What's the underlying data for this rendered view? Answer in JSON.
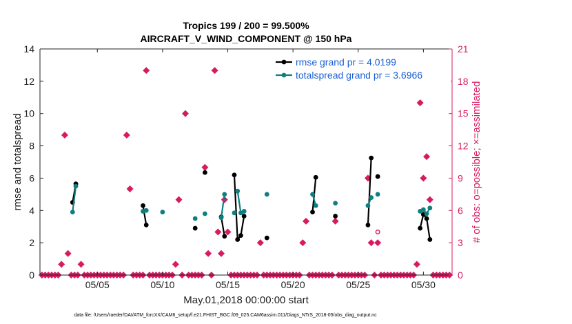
{
  "chart_data": {
    "type": "line",
    "title_line1": "Tropics 199 / 200 = 99.500%",
    "title_line2": "AIRCRAFT_V_WIND_COMPONENT @ 150 hPa",
    "xlabel": "May.01,2018 00:00:00 start",
    "ylabel": "rmse and totalspread",
    "ylabel_right": "# of obs: o=possible; ×=assimilated",
    "xlim": [
      0.6,
      32.2
    ],
    "ylim": [
      0,
      14
    ],
    "ylim_right": [
      0,
      21
    ],
    "x_ticks": [
      5,
      10,
      15,
      20,
      25,
      30
    ],
    "x_tick_labels": [
      "05/05",
      "05/10",
      "05/15",
      "05/20",
      "05/25",
      "05/30"
    ],
    "y_ticks": [
      0,
      2,
      4,
      6,
      8,
      10,
      12,
      14
    ],
    "y_tick_labels": [
      "0",
      "2",
      "4",
      "6",
      "8",
      "10",
      "12",
      "14"
    ],
    "y2_ticks": [
      0,
      3,
      6,
      9,
      12,
      15,
      18,
      21
    ],
    "y2_tick_labels": [
      "0",
      "3",
      "6",
      "9",
      "12",
      "15",
      "18",
      "21"
    ],
    "legend": [
      {
        "label": "rmse grand pr = 4.0199",
        "color": "#000000"
      },
      {
        "label": "totalspread grand pr = 3.6966",
        "color": "#0e7f7f"
      }
    ],
    "series": [
      {
        "name": "rmse",
        "color": "#000000",
        "segments": [
          [
            [
              3.1,
              4.5
            ],
            [
              3.35,
              5.65
            ]
          ],
          [
            [
              8.5,
              4.3
            ],
            [
              8.75,
              3.1
            ]
          ],
          [
            [
              12.5,
              2.9
            ]
          ],
          [
            [
              13.25,
              6.35
            ]
          ],
          [
            [
              14.5,
              3.6
            ],
            [
              14.75,
              2.4
            ]
          ],
          [
            [
              15.5,
              6.2
            ],
            [
              15.75,
              2.2
            ],
            [
              16.0,
              2.45
            ],
            [
              16.25,
              3.65
            ]
          ],
          [
            [
              18.0,
              2.3
            ]
          ],
          [
            [
              21.5,
              3.9
            ],
            [
              21.75,
              6.05
            ]
          ],
          [
            [
              23.25,
              3.65
            ]
          ],
          [
            [
              25.75,
              3.1
            ],
            [
              26.0,
              7.25
            ]
          ],
          [
            [
              26.5,
              6.1
            ]
          ],
          [
            [
              29.75,
              2.9
            ],
            [
              30.0,
              3.75
            ],
            [
              30.25,
              3.5
            ],
            [
              30.5,
              2.2
            ]
          ]
        ]
      },
      {
        "name": "totalspread",
        "color": "#0e7f7f",
        "segments": [
          [
            [
              3.1,
              3.9
            ],
            [
              3.35,
              5.5
            ]
          ],
          [
            [
              8.5,
              3.95
            ],
            [
              8.75,
              4.0
            ]
          ],
          [
            [
              10.0,
              3.9
            ]
          ],
          [
            [
              12.5,
              3.5
            ]
          ],
          [
            [
              13.25,
              3.8
            ]
          ],
          [
            [
              14.5,
              3.55
            ],
            [
              14.75,
              5.0
            ]
          ],
          [
            [
              15.5,
              3.85
            ]
          ],
          [
            [
              15.75,
              5.2
            ],
            [
              16.0,
              3.85
            ],
            [
              16.25,
              3.95
            ]
          ],
          [
            [
              18.0,
              5.0
            ]
          ],
          [
            [
              21.5,
              5.0
            ],
            [
              21.75,
              4.3
            ]
          ],
          [
            [
              23.25,
              4.45
            ]
          ],
          [
            [
              25.75,
              4.3
            ],
            [
              26.0,
              4.8
            ]
          ],
          [
            [
              26.5,
              5.0
            ]
          ],
          [
            [
              29.75,
              3.95
            ],
            [
              30.0,
              4.05
            ],
            [
              30.25,
              3.8
            ],
            [
              30.5,
              4.15
            ]
          ]
        ]
      }
    ],
    "obs_possible_x": [
      26.5
    ],
    "obs_possible_count": [
      4
    ],
    "obs_assimilated_x": [
      0.75,
      1.0,
      1.25,
      1.5,
      1.75,
      2.0,
      2.25,
      2.5,
      2.75,
      3.0,
      3.25,
      3.5,
      3.75,
      4.0,
      4.25,
      4.5,
      4.75,
      5.0,
      5.25,
      5.5,
      5.75,
      6.0,
      6.25,
      6.5,
      6.75,
      7.0,
      7.25,
      7.5,
      7.75,
      8.0,
      8.25,
      8.5,
      8.75,
      9.0,
      9.25,
      9.5,
      9.75,
      10.0,
      10.25,
      10.5,
      10.75,
      11.0,
      11.25,
      11.5,
      11.75,
      12.0,
      12.25,
      12.5,
      12.75,
      13.0,
      13.25,
      13.5,
      13.75,
      14.0,
      14.25,
      14.5,
      14.75,
      15.0,
      15.25,
      15.5,
      15.75,
      16.0,
      16.25,
      16.5,
      16.75,
      17.0,
      17.25,
      17.5,
      17.75,
      18.0,
      18.25,
      18.5,
      18.75,
      19.0,
      19.25,
      19.5,
      19.75,
      20.0,
      20.25,
      20.5,
      20.75,
      21.0,
      21.25,
      21.5,
      21.75,
      22.0,
      22.25,
      22.5,
      22.75,
      23.0,
      23.25,
      23.5,
      23.75,
      24.0,
      24.25,
      24.5,
      24.75,
      25.0,
      25.25,
      25.5,
      25.75,
      26.0,
      26.25,
      26.5,
      26.75,
      27.0,
      27.25,
      27.5,
      27.75,
      28.0,
      28.25,
      28.5,
      28.75,
      29.0,
      29.25,
      29.5,
      29.75,
      30.0,
      30.25,
      30.5,
      30.75,
      31.0,
      31.25,
      31.5,
      31.75,
      32.0
    ],
    "obs_assimilated_count": [
      0,
      0,
      0,
      0,
      0,
      0,
      1,
      13,
      2,
      0,
      0,
      0,
      1,
      0,
      0,
      0,
      0,
      0,
      0,
      0,
      0,
      0,
      0,
      0,
      0,
      0,
      13,
      8,
      0,
      0,
      0,
      0,
      19,
      0,
      0,
      0,
      0,
      0,
      0,
      0,
      0,
      1,
      7,
      0,
      15,
      0,
      0,
      0,
      0,
      0,
      10,
      2,
      0,
      19,
      4,
      2,
      7,
      4,
      0,
      0,
      0,
      0,
      0,
      0,
      0,
      0,
      0,
      3,
      0,
      0,
      0,
      0,
      0,
      0,
      0,
      0,
      0,
      0,
      0,
      0,
      3,
      5,
      0,
      0,
      0,
      0,
      0,
      0,
      0,
      0,
      5,
      0,
      0,
      0,
      0,
      0,
      0,
      0,
      0,
      0,
      9,
      3,
      0,
      3,
      0,
      0,
      0,
      0,
      0,
      0,
      0,
      0,
      0,
      0,
      0,
      1,
      16,
      9,
      11,
      7,
      0,
      0,
      0,
      0,
      0,
      0
    ]
  },
  "footer": "data file: /Users/raeder/DAI/ATM_forcXX/CAM6_setup/f.e21.FHIST_BGC.f09_025.CAM6assim.011/Diags_NTrS_2018-05/obs_diag_output.nc"
}
